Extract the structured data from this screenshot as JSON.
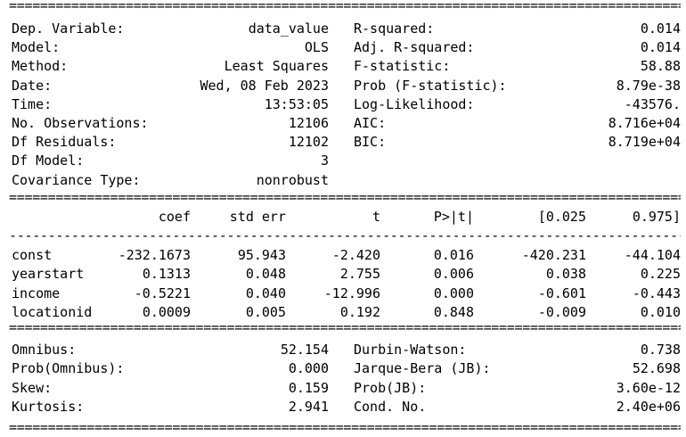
{
  "summary": {
    "left": [
      {
        "label": "Dep. Variable:",
        "value": "data_value"
      },
      {
        "label": "Model:",
        "value": "OLS"
      },
      {
        "label": "Method:",
        "value": "Least Squares"
      },
      {
        "label": "Date:",
        "value": "Wed, 08 Feb 2023"
      },
      {
        "label": "Time:",
        "value": "13:53:05"
      },
      {
        "label": "No. Observations:",
        "value": "12106"
      },
      {
        "label": "Df Residuals:",
        "value": "12102"
      },
      {
        "label": "Df Model:",
        "value": "3"
      },
      {
        "label": "Covariance Type:",
        "value": "nonrobust"
      }
    ],
    "right": [
      {
        "label": "R-squared:",
        "value": "0.014"
      },
      {
        "label": "Adj. R-squared:",
        "value": "0.014"
      },
      {
        "label": "F-statistic:",
        "value": "58.88"
      },
      {
        "label": "Prob (F-statistic):",
        "value": "8.79e-38"
      },
      {
        "label": "Log-Likelihood:",
        "value": "-43576."
      },
      {
        "label": "AIC:",
        "value": "8.716e+04"
      },
      {
        "label": "BIC:",
        "value": "8.719e+04"
      }
    ]
  },
  "coef_table": {
    "headers": [
      "coef",
      "std err",
      "t",
      "P>|t|",
      "[0.025",
      "0.975]"
    ],
    "rows": [
      {
        "name": "const",
        "cells": [
          "-232.1673",
          "95.943",
          "-2.420",
          "0.016",
          "-420.231",
          "-44.104"
        ]
      },
      {
        "name": "yearstart",
        "cells": [
          "0.1313",
          "0.048",
          "2.755",
          "0.006",
          "0.038",
          "0.225"
        ]
      },
      {
        "name": "income",
        "cells": [
          "-0.5221",
          "0.040",
          "-12.996",
          "0.000",
          "-0.601",
          "-0.443"
        ]
      },
      {
        "name": "locationid",
        "cells": [
          "0.0009",
          "0.005",
          "0.192",
          "0.848",
          "-0.009",
          "0.010"
        ]
      }
    ]
  },
  "diagnostics": {
    "left": [
      {
        "label": "Omnibus:",
        "value": "52.154"
      },
      {
        "label": "Prob(Omnibus):",
        "value": "0.000"
      },
      {
        "label": "Skew:",
        "value": "0.159"
      },
      {
        "label": "Kurtosis:",
        "value": "2.941"
      }
    ],
    "right": [
      {
        "label": "Durbin-Watson:",
        "value": "0.738"
      },
      {
        "label": "Jarque-Bera (JB):",
        "value": "52.698"
      },
      {
        "label": "Prob(JB):",
        "value": "3.60e-12"
      },
      {
        "label": "Cond. No.",
        "value": "2.40e+06"
      }
    ]
  }
}
